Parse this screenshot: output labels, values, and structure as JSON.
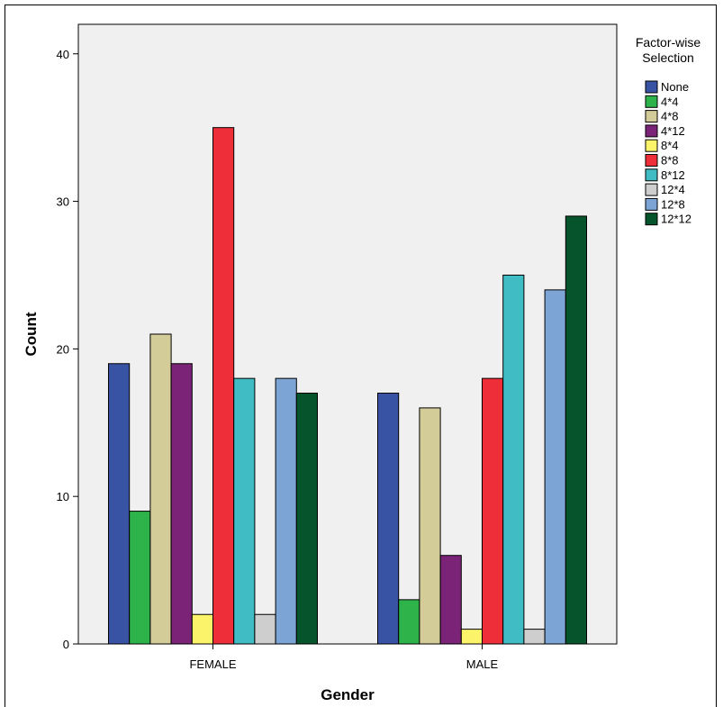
{
  "chart_data": {
    "type": "bar",
    "title": "",
    "xlabel": "Gender",
    "ylabel": "Count",
    "categories": [
      "FEMALE",
      "MALE"
    ],
    "ylim": [
      0,
      42
    ],
    "yticks": [
      0,
      10,
      20,
      30,
      40
    ],
    "grid": false,
    "legend": {
      "title_lines": [
        "Factor-wise",
        "Selection"
      ],
      "placement": "right"
    },
    "series": [
      {
        "name": "None",
        "color": "#3953a4",
        "values": [
          19,
          17
        ]
      },
      {
        "name": "4*4",
        "color": "#2db34a",
        "values": [
          9,
          3
        ]
      },
      {
        "name": "4*8",
        "color": "#d3cc98",
        "values": [
          21,
          16
        ]
      },
      {
        "name": "4*12",
        "color": "#7b2377",
        "values": [
          19,
          6
        ]
      },
      {
        "name": "8*4",
        "color": "#fbf46b",
        "values": [
          2,
          1
        ]
      },
      {
        "name": "8*8",
        "color": "#ee2e38",
        "values": [
          35,
          18
        ]
      },
      {
        "name": "8*12",
        "color": "#40bcc4",
        "values": [
          18,
          25
        ]
      },
      {
        "name": "12*4",
        "color": "#cecece",
        "values": [
          2,
          1
        ]
      },
      {
        "name": "12*8",
        "color": "#7ca5d6",
        "values": [
          18,
          24
        ]
      },
      {
        "name": "12*12",
        "color": "#05542b",
        "values": [
          17,
          29
        ]
      }
    ]
  }
}
